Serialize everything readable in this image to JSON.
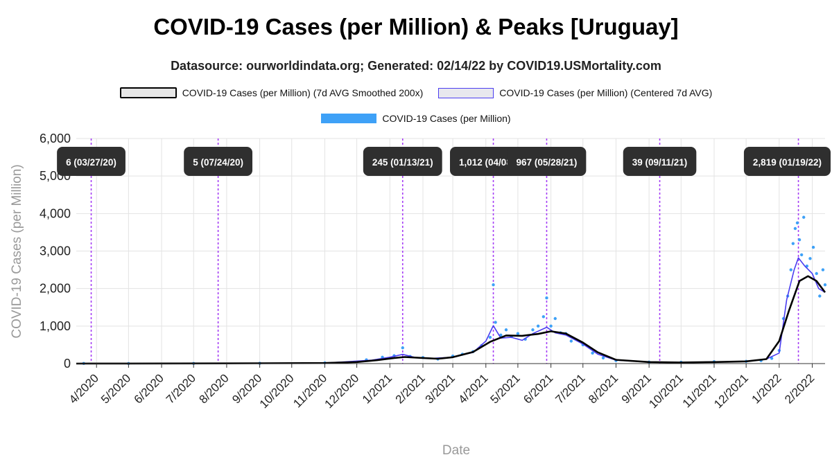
{
  "title": "COVID-19 Cases (per Million) & Peaks [Uruguay]",
  "subtitle": "Datasource: ourworldindata.org; Generated: 02/14/22 by COVID19.USMortality.com",
  "legend": {
    "smooth": "COVID-19 Cases (per Million) (7d AVG Smoothed 200x)",
    "avg": "COVID-19 Cases (per Million) (Centered 7d AVG)",
    "raw": "COVID-19 Cases (per Million)"
  },
  "colors": {
    "smooth": "#000000",
    "avg": "#4a3cf0",
    "raw": "#3ea1f7",
    "peak_line": "#a43cf5",
    "annotation_bg": "#2f2f2f",
    "grid": "#e3e3e3"
  },
  "chart_data": {
    "type": "line",
    "xlabel": "Date",
    "ylabel": "COVID-19 Cases (per Million)",
    "ylim": [
      0,
      6000
    ],
    "yticks": [
      0,
      1000,
      2000,
      3000,
      4000,
      5000,
      6000
    ],
    "ytick_labels": [
      "0",
      "1,000",
      "2,000",
      "3,000",
      "4,000",
      "5,000",
      "6,000"
    ],
    "xlim": [
      "2020-03-13",
      "2022-02-13"
    ],
    "xticks": [
      "2020-04-01",
      "2020-05-01",
      "2020-06-01",
      "2020-07-01",
      "2020-08-01",
      "2020-09-01",
      "2020-10-01",
      "2020-11-01",
      "2020-12-01",
      "2021-01-01",
      "2021-02-01",
      "2021-03-01",
      "2021-04-01",
      "2021-05-01",
      "2021-06-01",
      "2021-07-01",
      "2021-08-01",
      "2021-09-01",
      "2021-10-01",
      "2021-11-01",
      "2021-12-01",
      "2022-01-01",
      "2022-02-01"
    ],
    "xtick_labels": [
      "4/2020",
      "5/2020",
      "6/2020",
      "7/2020",
      "8/2020",
      "9/2020",
      "10/2020",
      "11/2020",
      "12/2020",
      "1/2021",
      "2/2021",
      "3/2021",
      "4/2021",
      "5/2021",
      "6/2021",
      "7/2021",
      "8/2021",
      "9/2021",
      "10/2021",
      "11/2021",
      "12/2021",
      "1/2022",
      "2/2022"
    ],
    "grid": true,
    "legend_position": "top",
    "series": [
      {
        "name": "COVID-19 Cases (per Million) (7d AVG Smoothed 200x)",
        "style": "line",
        "x": [
          "2020-03-13",
          "2020-05-01",
          "2020-08-01",
          "2020-11-01",
          "2020-12-01",
          "2020-12-20",
          "2021-01-05",
          "2021-01-15",
          "2021-02-01",
          "2021-02-15",
          "2021-03-01",
          "2021-03-20",
          "2021-04-05",
          "2021-04-20",
          "2021-05-05",
          "2021-05-20",
          "2021-06-01",
          "2021-06-15",
          "2021-07-01",
          "2021-07-15",
          "2021-08-01",
          "2021-09-01",
          "2021-10-01",
          "2021-11-01",
          "2021-12-01",
          "2021-12-20",
          "2022-01-01",
          "2022-01-10",
          "2022-01-20",
          "2022-01-28",
          "2022-02-05",
          "2022-02-13"
        ],
        "y": [
          0,
          2,
          5,
          15,
          40,
          90,
          150,
          175,
          150,
          130,
          170,
          310,
          580,
          750,
          740,
          790,
          860,
          800,
          560,
          300,
          100,
          40,
          30,
          40,
          60,
          120,
          600,
          1400,
          2200,
          2330,
          2200,
          1900
        ]
      },
      {
        "name": "COVID-19 Cases (per Million) (Centered 7d AVG)",
        "style": "line",
        "x": [
          "2020-03-13",
          "2020-06-01",
          "2020-11-01",
          "2020-12-15",
          "2021-01-01",
          "2021-01-13",
          "2021-01-25",
          "2021-02-10",
          "2021-03-01",
          "2021-03-20",
          "2021-04-01",
          "2021-04-08",
          "2021-04-15",
          "2021-04-25",
          "2021-05-05",
          "2021-05-15",
          "2021-05-28",
          "2021-06-05",
          "2021-06-15",
          "2021-07-01",
          "2021-07-15",
          "2021-08-01",
          "2021-09-01",
          "2021-10-01",
          "2021-11-01",
          "2021-12-01",
          "2021-12-20",
          "2022-01-01",
          "2022-01-08",
          "2022-01-15",
          "2022-01-19",
          "2022-01-25",
          "2022-02-01",
          "2022-02-07",
          "2022-02-13"
        ],
        "y": [
          0,
          2,
          15,
          90,
          170,
          245,
          160,
          140,
          170,
          300,
          600,
          1012,
          680,
          700,
          620,
          800,
          967,
          820,
          760,
          520,
          250,
          90,
          40,
          30,
          45,
          60,
          120,
          280,
          1700,
          2500,
          2819,
          2600,
          2400,
          2000,
          1900
        ]
      },
      {
        "name": "COVID-19 Cases (per Million)",
        "style": "scatter",
        "x": [
          "2020-03-20",
          "2020-05-01",
          "2020-07-01",
          "2020-09-01",
          "2020-11-01",
          "2020-12-10",
          "2020-12-25",
          "2021-01-05",
          "2021-01-13",
          "2021-01-20",
          "2021-02-01",
          "2021-02-15",
          "2021-03-01",
          "2021-03-10",
          "2021-03-20",
          "2021-03-28",
          "2021-04-05",
          "2021-04-08",
          "2021-04-10",
          "2021-04-15",
          "2021-04-20",
          "2021-04-25",
          "2021-05-01",
          "2021-05-08",
          "2021-05-15",
          "2021-05-20",
          "2021-05-25",
          "2021-05-28",
          "2021-06-01",
          "2021-06-05",
          "2021-06-10",
          "2021-06-15",
          "2021-06-20",
          "2021-07-01",
          "2021-07-10",
          "2021-07-20",
          "2021-08-01",
          "2021-09-01",
          "2021-10-01",
          "2021-11-01",
          "2021-12-01",
          "2021-12-15",
          "2021-12-25",
          "2022-01-01",
          "2022-01-05",
          "2022-01-09",
          "2022-01-12",
          "2022-01-14",
          "2022-01-16",
          "2022-01-18",
          "2022-01-20",
          "2022-01-22",
          "2022-01-24",
          "2022-01-27",
          "2022-01-30",
          "2022-02-02",
          "2022-02-05",
          "2022-02-08",
          "2022-02-11",
          "2022-02-13"
        ],
        "y": [
          3,
          2,
          4,
          8,
          20,
          100,
          170,
          210,
          420,
          190,
          160,
          120,
          200,
          250,
          320,
          480,
          700,
          2100,
          1100,
          760,
          900,
          720,
          800,
          650,
          900,
          1000,
          1250,
          1750,
          1000,
          1200,
          820,
          800,
          600,
          500,
          280,
          150,
          80,
          40,
          35,
          50,
          60,
          80,
          140,
          350,
          1200,
          1800,
          2500,
          3200,
          3600,
          3750,
          3300,
          2900,
          3900,
          2600,
          2800,
          3100,
          2400,
          1800,
          2500,
          2100
        ]
      }
    ],
    "peaks": [
      {
        "date": "2020-03-27",
        "label": "6 (03/27/20)"
      },
      {
        "date": "2020-07-24",
        "label": "5 (07/24/20)"
      },
      {
        "date": "2021-01-13",
        "label": "245 (01/13/21)"
      },
      {
        "date": "2021-04-08",
        "label": "1,012 (04/08/21)"
      },
      {
        "date": "2021-05-28",
        "label": "967 (05/28/21)"
      },
      {
        "date": "2021-09-11",
        "label": "39 (09/11/21)"
      },
      {
        "date": "2022-01-19",
        "label": "2,819 (01/19/22)"
      }
    ]
  }
}
